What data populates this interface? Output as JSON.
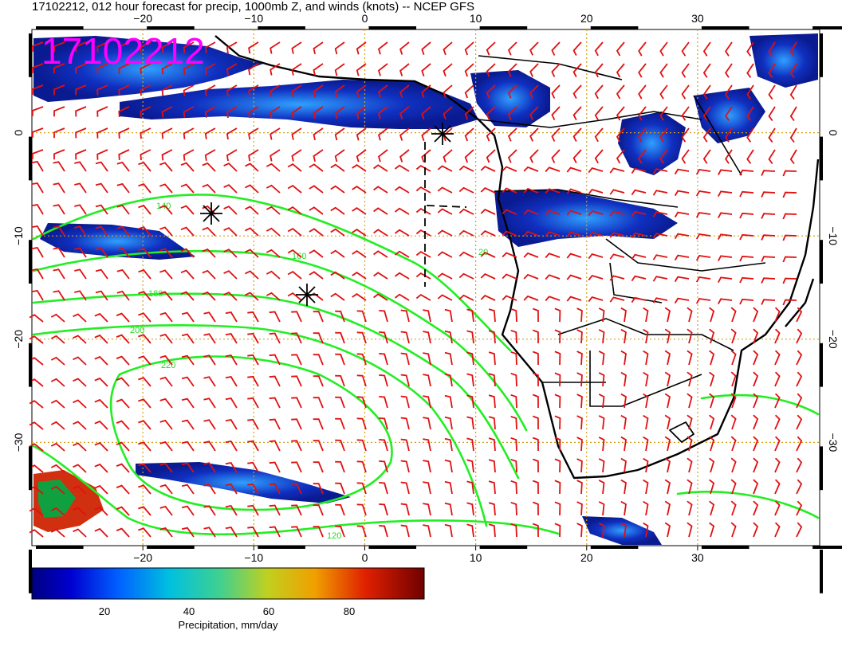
{
  "title": "17102212, 012 hour forecast for precip, 1000mb Z, and winds (knots) -- NCEP GFS",
  "stamp": "17102212",
  "axes": {
    "x_ticks": [
      "−20",
      "−10",
      "0",
      "10",
      "20",
      "30"
    ],
    "y_ticks": [
      "0",
      "−10",
      "−20",
      "−30"
    ],
    "x_range": [
      -30,
      41
    ],
    "y_range": [
      -40,
      10
    ]
  },
  "colorbar": {
    "label": "Precipitation, mm/day",
    "ticks": [
      "20",
      "40",
      "60",
      "80"
    ],
    "range": [
      0,
      100
    ]
  },
  "contours": {
    "levels": [
      "140",
      "160",
      "180",
      "200",
      "220",
      "20",
      "120"
    ],
    "color": "#22dd22"
  },
  "colors": {
    "wind_barbs": "#e01010",
    "contours": "#22ee22",
    "stamp": "#ff00ff",
    "grid": "#d4a017",
    "coast": "#000000"
  }
}
